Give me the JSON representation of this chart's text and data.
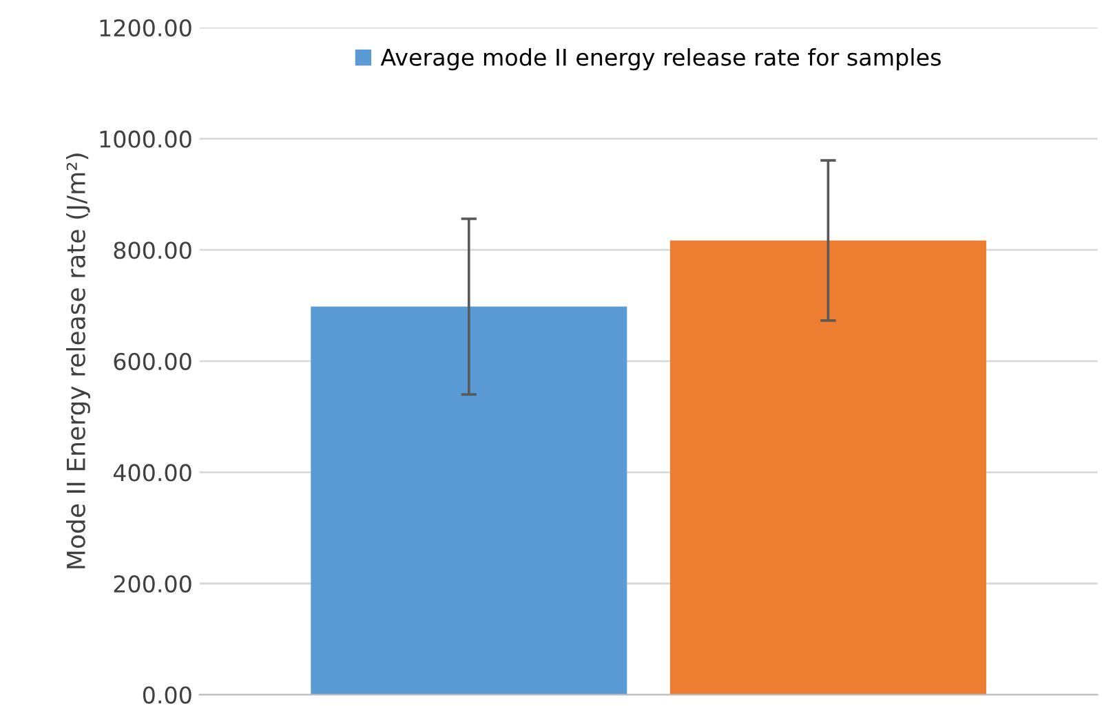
{
  "chart_data": {
    "type": "bar",
    "ylabel": "Mode II Energy release rate (J/m²)",
    "categories": [
      null
    ],
    "series": [
      {
        "name": "Average mode II energy release rate for samples",
        "color": "#5b9bd5",
        "values": [
          698
        ],
        "errors": [
          158
        ]
      },
      {
        "color": "#ed7d31",
        "values": [
          817
        ],
        "errors": [
          144
        ]
      }
    ],
    "ylim": [
      0,
      1200
    ],
    "yticks": [
      {
        "value": 0,
        "label": "0.00"
      },
      {
        "value": 200,
        "label": "200.00"
      },
      {
        "value": 400,
        "label": "400.00"
      },
      {
        "value": 600,
        "label": "600.00"
      },
      {
        "value": 800,
        "label": "800.00"
      },
      {
        "value": 1000,
        "label": "1000.00"
      },
      {
        "value": 1200,
        "label": "1200.00"
      }
    ],
    "grid": "y",
    "legend": "top"
  }
}
